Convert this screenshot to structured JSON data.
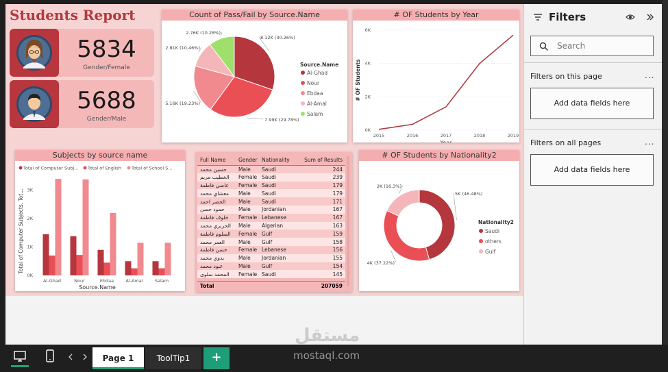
{
  "report": {
    "title": "Students Report",
    "kpis": [
      {
        "value": "5834",
        "label": "Gender/Female"
      },
      {
        "value": "5688",
        "label": "Gender/Male"
      }
    ]
  },
  "pie_title": "Count of Pass/Fail by Source.Name",
  "line_title": "# OF Students by Year",
  "bar_title": "Subjects by source name",
  "donut_title": "# OF Students by Nationality2",
  "table": {
    "headers": [
      "Full Name",
      "Gender",
      "Nationality",
      "Sum of Results"
    ],
    "rows": [
      [
        "حسين محمد",
        "Male",
        "Saudi",
        "244"
      ],
      [
        "الخطيب مريم",
        "Female",
        "Saudi",
        "239"
      ],
      [
        "عاصي فاطمة",
        "Female",
        "Saudi",
        "179"
      ],
      [
        "معشاي محمد",
        "Male",
        "Saudi",
        "179"
      ],
      [
        "الخضر احمد",
        "Male",
        "Saudi",
        "171"
      ],
      [
        "حمود حسن",
        "Male",
        "Jordanian",
        "167"
      ],
      [
        "خلوف فاطمة",
        "Female",
        "Lebanese",
        "167"
      ],
      [
        "الحربري محمد",
        "Male",
        "Algerian",
        "163"
      ],
      [
        "السلوم فاطمة",
        "Female",
        "Gulf",
        "159"
      ],
      [
        "العمر محمد",
        "Male",
        "Gulf",
        "158"
      ],
      [
        "حسن فاطمة",
        "Female",
        "Lebanese",
        "156"
      ],
      [
        "بدوي محمد",
        "Male",
        "Jordanian",
        "155"
      ],
      [
        "عبود محمد",
        "Male",
        "Gulf",
        "154"
      ],
      [
        "المحمد سلوى",
        "Female",
        "Saudi",
        "145"
      ]
    ],
    "total_label": "Total",
    "total_value": "207059"
  },
  "filters": {
    "title": "Filters",
    "search_placeholder": "Search",
    "this_page_label": "Filters on this page",
    "all_pages_label": "Filters on all pages",
    "add_fields_label": "Add data fields here",
    "more_label": "..."
  },
  "bottom": {
    "tabs": [
      "Page 1",
      "ToolTip1"
    ],
    "add_label": "+",
    "watermark_logo": "مستقل",
    "watermark_text": "mostaql.com"
  },
  "colors": {
    "dark_red": "#b5363d",
    "red": "#e94f55",
    "pink": "#f08a8e",
    "light_pink": "#f4b6b8",
    "green": "#9ee06b",
    "line": "#b03a3f"
  },
  "chart_data": [
    {
      "type": "pie",
      "categories": [
        "Al-Ghad",
        "Nour",
        "Ebdaa",
        "Al-Amal",
        "Salam"
      ],
      "values": [
        8120,
        7990,
        5160,
        2810,
        2760
      ],
      "labels": [
        "8.12K (30.26%)",
        "7.99K (29.78%)",
        "5.16K (19.23%)",
        "2.81K (10.46%)",
        "2.76K (10.28%)"
      ],
      "legend_title": "Source.Name",
      "legend": "right"
    },
    {
      "type": "line",
      "x": [
        "2015",
        "2016",
        "2017",
        "2018",
        "2019"
      ],
      "values": [
        50,
        350,
        1400,
        4000,
        5700
      ],
      "xlabel": "Year",
      "ylabel": "# OF Students",
      "ylim": [
        0,
        6000
      ],
      "yticks": [
        "0K",
        "2K",
        "4K",
        "6K"
      ]
    },
    {
      "type": "bar",
      "categories": [
        "Al-Ghad",
        "Nour",
        "Ebdaa",
        "Al-Amal",
        "Salam"
      ],
      "series": [
        {
          "name": "Total of Computer Subj...",
          "values": [
            1450,
            1380,
            900,
            500,
            500
          ]
        },
        {
          "name": "Total of English",
          "values": [
            700,
            720,
            450,
            250,
            250
          ]
        },
        {
          "name": "Total of School S...",
          "values": [
            3400,
            3380,
            2200,
            1150,
            1150
          ]
        }
      ],
      "xlabel": "Source.Name",
      "ylabel": "Total of Computer Subjects, Tot...",
      "ylim": [
        0,
        3500
      ],
      "yticks": [
        "0K",
        "1K",
        "2K",
        "3K"
      ],
      "legend": "top"
    },
    {
      "type": "pie",
      "donut": true,
      "categories": [
        "Saudi",
        "others",
        "Gulf"
      ],
      "values": [
        5000,
        4000,
        2000
      ],
      "labels": [
        "5K (46.48%)",
        "4K (37.22%)",
        "2K (16.3%)"
      ],
      "legend_title": "Nationality2",
      "legend": "right"
    }
  ]
}
